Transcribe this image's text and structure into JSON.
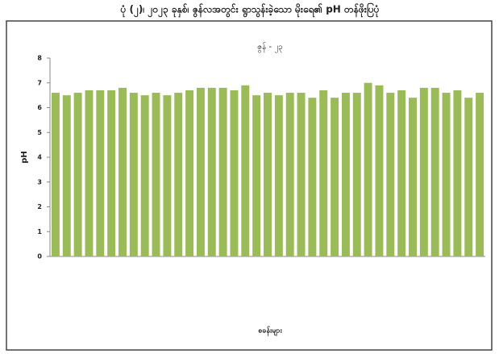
{
  "chart_data": {
    "type": "bar",
    "title": "ပုံ (၂)၊ ၂၀၂၃ ခုနှစ်၊ ဇွန်လအတွင်း ရွာသွန်းခဲ့သော မိုးရေ၏ pH တန်ဖိုးပြပုံ",
    "subtitle": "ဇွန် - ၂၃",
    "y_label": "pH",
    "x_label": "စခန်းများ",
    "categories": [
      null,
      null,
      null,
      null,
      null,
      null,
      null,
      null,
      null,
      null,
      null,
      null,
      null,
      null,
      null,
      null,
      null,
      null,
      null,
      null,
      null,
      null,
      null,
      null,
      null,
      null,
      null,
      null,
      null,
      null,
      null,
      null,
      null,
      null,
      null,
      null,
      null,
      null,
      null
    ],
    "values": [
      6.6,
      6.5,
      6.6,
      6.7,
      6.7,
      6.7,
      6.8,
      6.6,
      6.5,
      6.6,
      6.5,
      6.6,
      6.7,
      6.8,
      6.8,
      6.8,
      6.7,
      6.9,
      6.5,
      6.6,
      6.5,
      6.6,
      6.6,
      6.4,
      6.7,
      6.4,
      6.6,
      6.6,
      7.0,
      6.9,
      6.6,
      6.7,
      6.4,
      6.8,
      6.8,
      6.6,
      6.7,
      6.4,
      6.6
    ],
    "color": "#9bbb59",
    "ylim": [
      0,
      8
    ],
    "yticks": [
      0,
      1,
      2,
      3,
      4,
      5,
      6,
      7,
      8
    ],
    "grid": false
  }
}
